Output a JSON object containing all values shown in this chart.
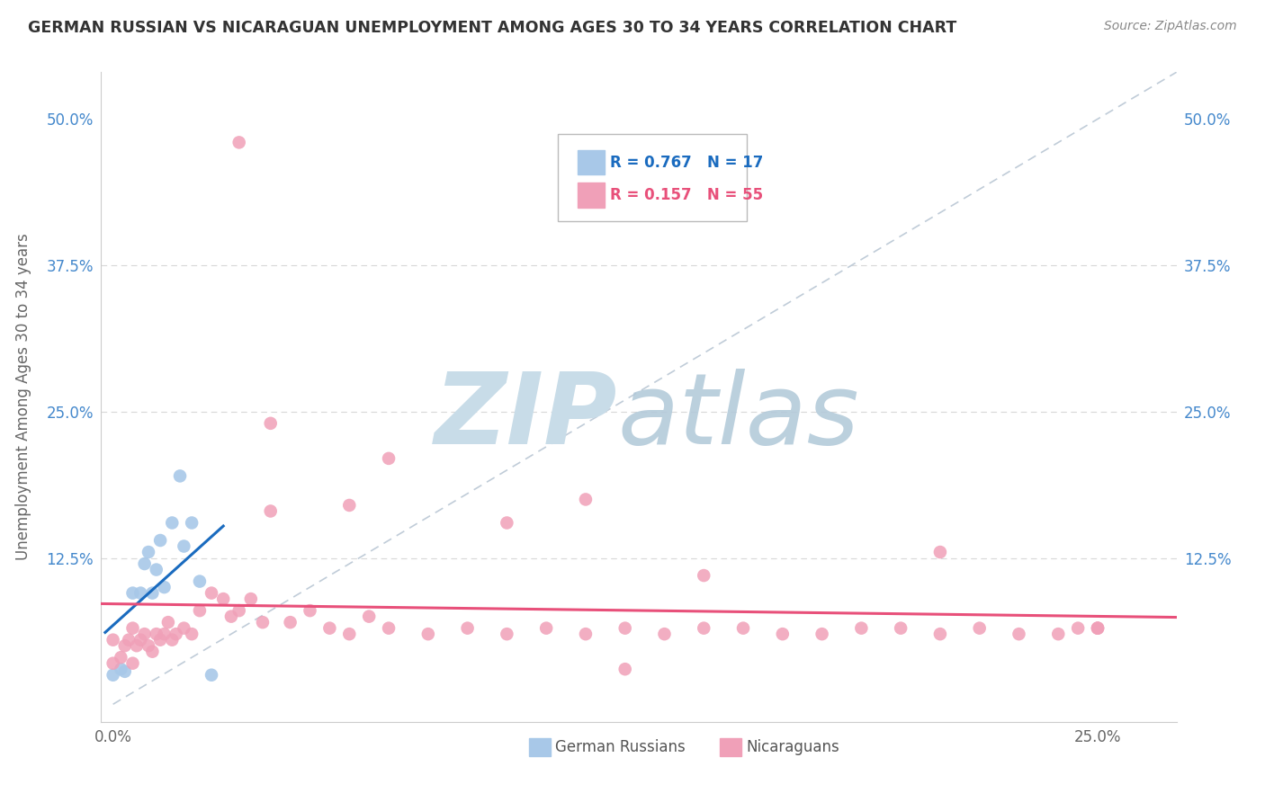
{
  "title": "GERMAN RUSSIAN VS NICARAGUAN UNEMPLOYMENT AMONG AGES 30 TO 34 YEARS CORRELATION CHART",
  "source": "Source: ZipAtlas.com",
  "ylabel": "Unemployment Among Ages 30 to 34 years",
  "r_german": 0.767,
  "n_german": 17,
  "r_nicaraguan": 0.157,
  "n_nicaraguan": 55,
  "german_color": "#a8c8e8",
  "nicaraguan_color": "#f0a0b8",
  "german_line_color": "#1a6bbf",
  "nicaraguan_line_color": "#e8507a",
  "diag_line_color": "#c0ccd8",
  "grid_color": "#d8d8d8",
  "tick_color": "#4488cc",
  "xlim": [
    0.0,
    0.27
  ],
  "ylim": [
    -0.015,
    0.54
  ],
  "xticks": [
    0.0,
    0.25
  ],
  "xtick_labels": [
    "0.0%",
    "25.0%"
  ],
  "yticks": [
    0.0,
    0.125,
    0.25,
    0.375,
    0.5
  ],
  "ytick_labels": [
    "",
    "12.5%",
    "25.0%",
    "37.5%",
    "50.0%"
  ],
  "gr_x": [
    0.0,
    0.002,
    0.003,
    0.005,
    0.007,
    0.008,
    0.009,
    0.01,
    0.011,
    0.012,
    0.013,
    0.015,
    0.017,
    0.018,
    0.02,
    0.022,
    0.025
  ],
  "gr_y": [
    0.025,
    0.03,
    0.028,
    0.095,
    0.095,
    0.12,
    0.13,
    0.095,
    0.115,
    0.14,
    0.1,
    0.155,
    0.195,
    0.135,
    0.155,
    0.105,
    0.025
  ],
  "nic_x": [
    0.0,
    0.0,
    0.002,
    0.003,
    0.004,
    0.005,
    0.005,
    0.006,
    0.007,
    0.008,
    0.009,
    0.01,
    0.011,
    0.012,
    0.013,
    0.014,
    0.015,
    0.016,
    0.018,
    0.02,
    0.022,
    0.025,
    0.028,
    0.03,
    0.032,
    0.035,
    0.038,
    0.04,
    0.045,
    0.05,
    0.055,
    0.06,
    0.065,
    0.07,
    0.08,
    0.09,
    0.1,
    0.11,
    0.12,
    0.13,
    0.14,
    0.15,
    0.16,
    0.17,
    0.18,
    0.19,
    0.2,
    0.21,
    0.22,
    0.23,
    0.24,
    0.245,
    0.25,
    0.25,
    0.25
  ],
  "nic_y": [
    0.035,
    0.055,
    0.04,
    0.05,
    0.055,
    0.035,
    0.065,
    0.05,
    0.055,
    0.06,
    0.05,
    0.045,
    0.06,
    0.055,
    0.06,
    0.07,
    0.055,
    0.06,
    0.065,
    0.06,
    0.08,
    0.095,
    0.09,
    0.075,
    0.08,
    0.09,
    0.07,
    0.165,
    0.07,
    0.08,
    0.065,
    0.06,
    0.075,
    0.065,
    0.06,
    0.065,
    0.06,
    0.065,
    0.06,
    0.065,
    0.06,
    0.065,
    0.065,
    0.06,
    0.06,
    0.065,
    0.065,
    0.06,
    0.065,
    0.06,
    0.06,
    0.065,
    0.065,
    0.065,
    0.065
  ],
  "nic_outlier_x": [
    0.04
  ],
  "nic_outlier_y": [
    0.24
  ],
  "nic_high1_x": [
    0.06
  ],
  "nic_high1_y": [
    0.17
  ],
  "nic_high2_x": [
    0.07
  ],
  "nic_high2_y": [
    0.21
  ],
  "nic_med1_x": [
    0.1
  ],
  "nic_med1_y": [
    0.155
  ],
  "nic_med2_x": [
    0.12
  ],
  "nic_med2_y": [
    0.175
  ],
  "nic_med3_x": [
    0.15
  ],
  "nic_med3_y": [
    0.11
  ],
  "nic_right_x": [
    0.21
  ],
  "nic_right_y": [
    0.13
  ],
  "nic_bot1_x": [
    0.13
  ],
  "nic_bot1_y": [
    0.03
  ],
  "watermark_zip_color": "#c8dce8",
  "watermark_atlas_color": "#b0c8d8"
}
